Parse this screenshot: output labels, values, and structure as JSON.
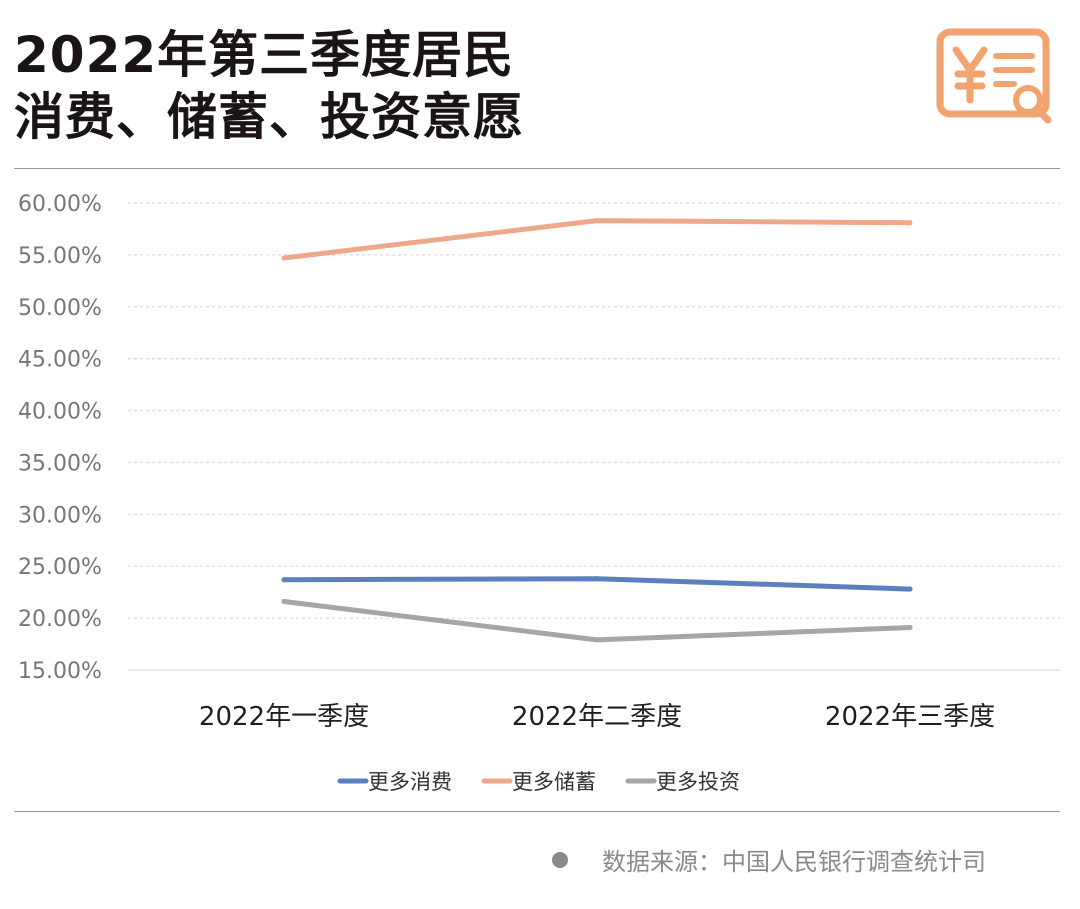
{
  "header": {
    "title_line1": "2022年第三季度居民",
    "title_line2": "消费、储蓄、投资意愿",
    "logo_icon": "receipt-yen-search-icon"
  },
  "chart_data": {
    "type": "line",
    "categories": [
      "2022年一季度",
      "2022年二季度",
      "2022年三季度"
    ],
    "series": [
      {
        "name": "更多消费",
        "color": "#5b7fbf",
        "values": [
          23.7,
          23.8,
          22.8
        ]
      },
      {
        "name": "更多储蓄",
        "color": "#eea98d",
        "values": [
          54.7,
          58.3,
          58.1
        ]
      },
      {
        "name": "更多投资",
        "color": "#a6a6a6",
        "values": [
          21.6,
          17.9,
          19.1
        ]
      }
    ],
    "y_ticks": [
      "60.00%",
      "55.00%",
      "50.00%",
      "45.00%",
      "40.00%",
      "35.00%",
      "30.00%",
      "25.00%",
      "20.00%",
      "15.00%"
    ],
    "ylim": [
      15,
      60
    ],
    "grid": true,
    "legend_position": "bottom",
    "title": "",
    "xlabel": "",
    "ylabel": ""
  },
  "footer": {
    "source": "数据来源：中国人民银行调查统计司"
  }
}
